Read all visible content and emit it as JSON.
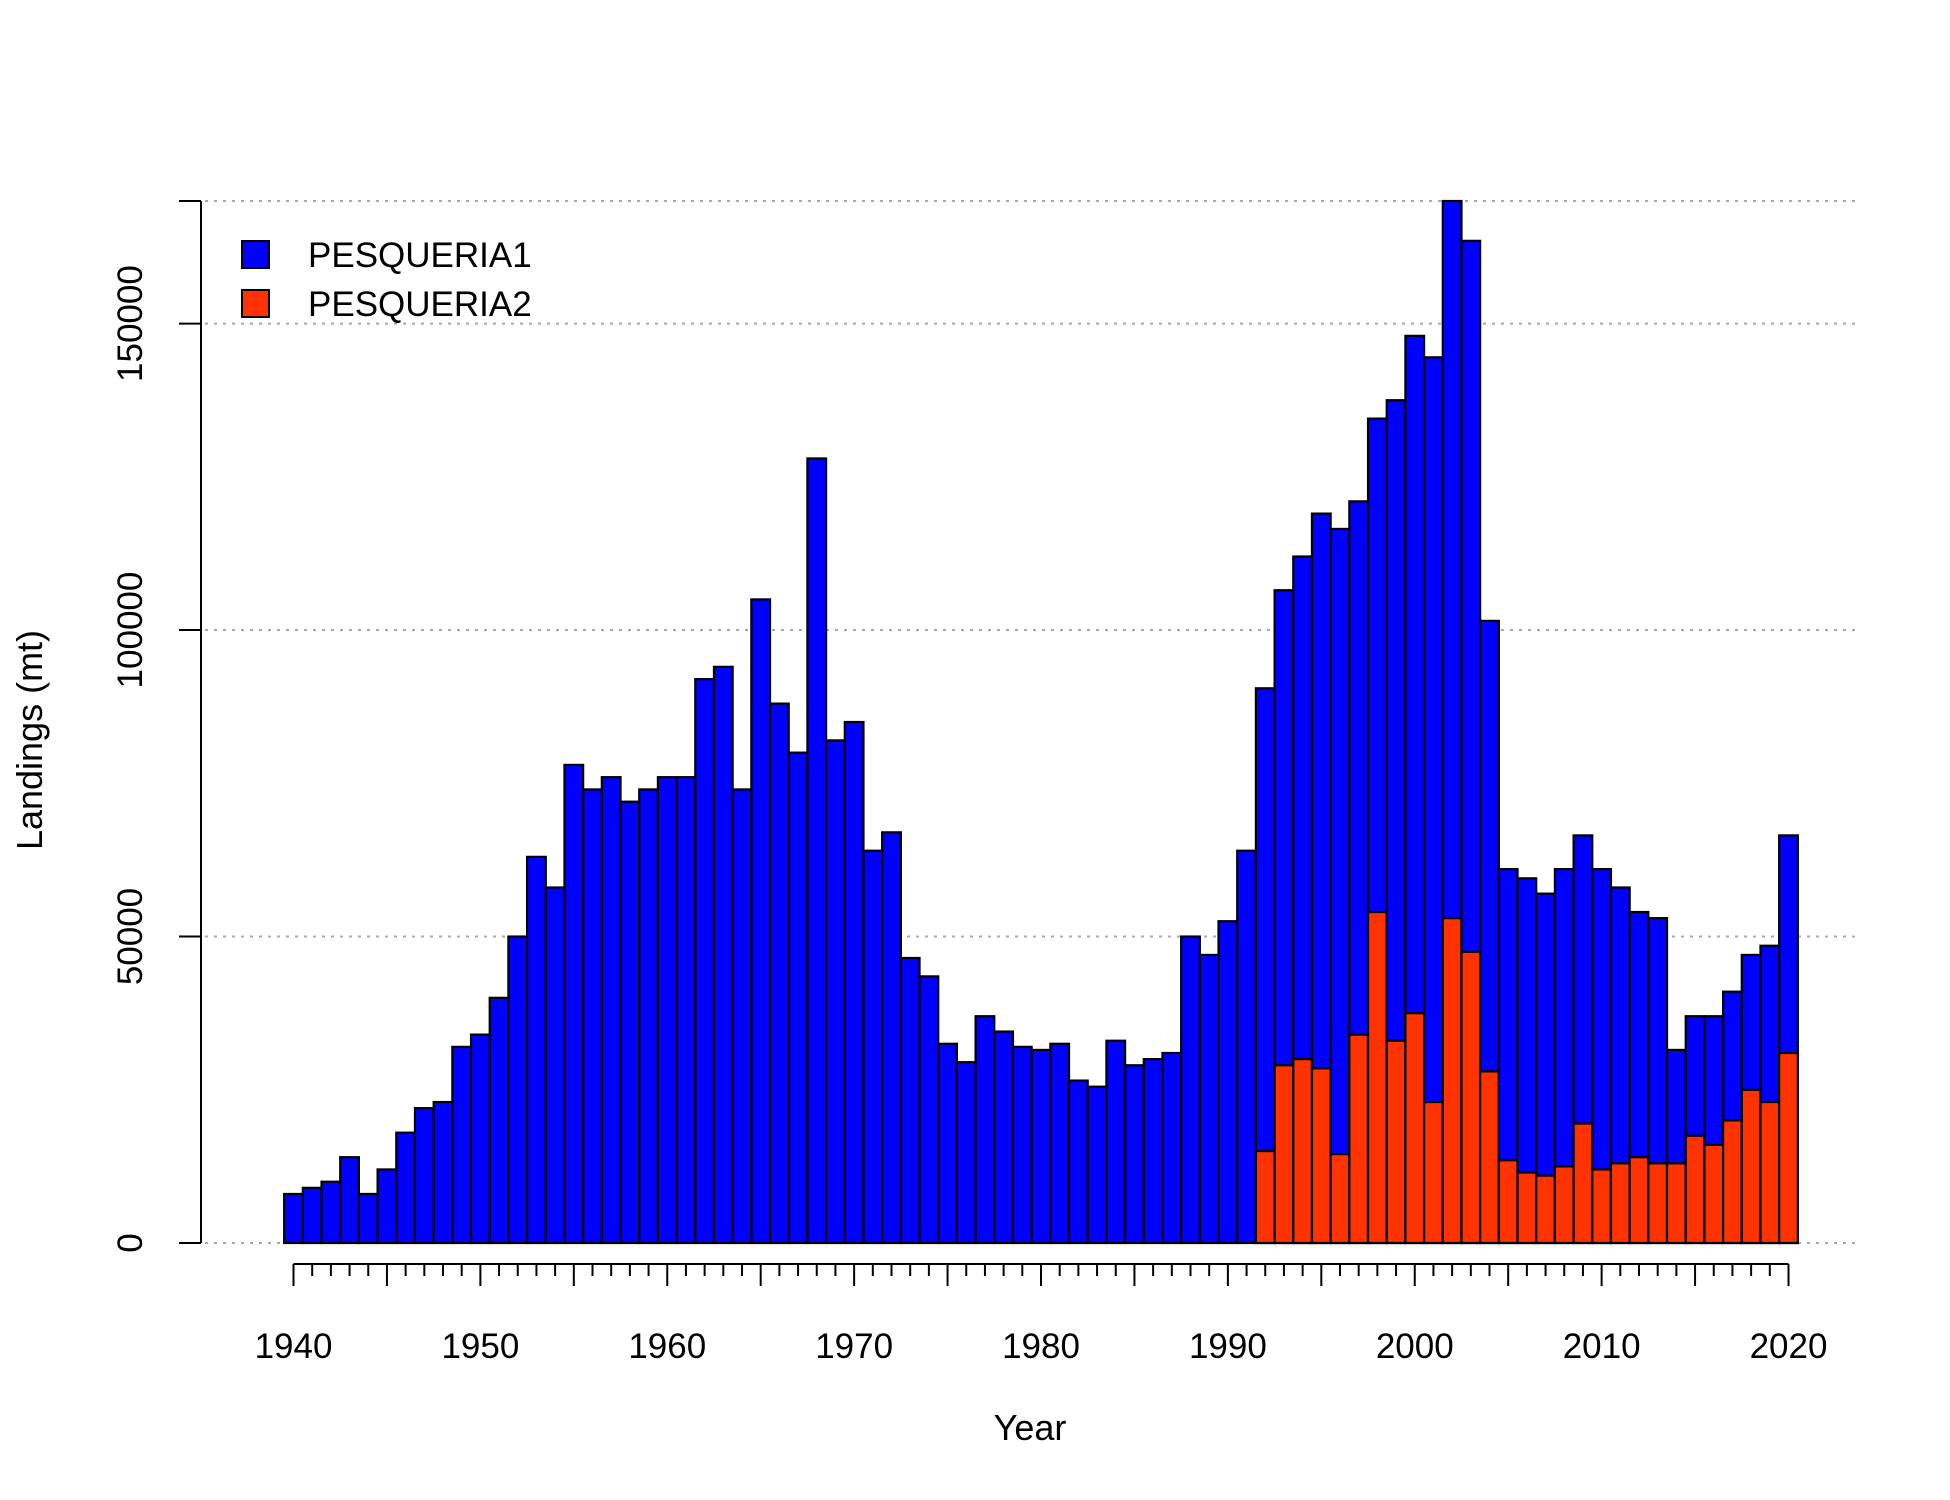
{
  "chart_data": {
    "type": "bar",
    "stacked": true,
    "title": "",
    "xlabel": "Year",
    "ylabel": "Landings (mt)",
    "xlim": [
      1940,
      2020
    ],
    "ylim": [
      0,
      170000
    ],
    "x_ticks": [
      1940,
      1950,
      1960,
      1970,
      1980,
      1990,
      2000,
      2010,
      2020
    ],
    "y_ticks": [
      0,
      50000,
      100000,
      150000
    ],
    "grid": "horizontal dotted",
    "legend_position": "top-left",
    "years": [
      1940,
      1941,
      1942,
      1943,
      1944,
      1945,
      1946,
      1947,
      1948,
      1949,
      1950,
      1951,
      1952,
      1953,
      1954,
      1955,
      1956,
      1957,
      1958,
      1959,
      1960,
      1961,
      1962,
      1963,
      1964,
      1965,
      1966,
      1967,
      1968,
      1969,
      1970,
      1971,
      1972,
      1973,
      1974,
      1975,
      1976,
      1977,
      1978,
      1979,
      1980,
      1981,
      1982,
      1983,
      1984,
      1985,
      1986,
      1987,
      1988,
      1989,
      1990,
      1991,
      1992,
      1993,
      1994,
      1995,
      1996,
      1997,
      1998,
      1999,
      2000,
      2001,
      2002,
      2003,
      2004,
      2005,
      2006,
      2007,
      2008,
      2009,
      2010,
      2011,
      2012,
      2013,
      2014,
      2015,
      2016,
      2017,
      2018,
      2019,
      2020
    ],
    "series": [
      {
        "name": "PESQUERIA1",
        "color": "#0000FF",
        "total_values": [
          8000,
          9000,
          10000,
          14000,
          8000,
          12000,
          18000,
          22000,
          23000,
          32000,
          34000,
          40000,
          50000,
          63000,
          58000,
          78000,
          74000,
          76000,
          72000,
          74000,
          76000,
          76000,
          92000,
          94000,
          74000,
          105000,
          88000,
          80000,
          128000,
          82000,
          85000,
          64000,
          67000,
          46500,
          43500,
          32500,
          29500,
          37000,
          34500,
          32000,
          31500,
          32500,
          26500,
          25500,
          33000,
          29000,
          30000,
          31000,
          50000,
          47000,
          52500,
          64000,
          90500,
          106500,
          112000,
          119000,
          116500,
          121000,
          134500,
          137500,
          148000,
          144500,
          170000,
          163500,
          101500,
          61000,
          59500,
          57000,
          61000,
          66500,
          61000,
          58000,
          54000,
          53000,
          31500,
          37000,
          37000,
          41000,
          47000,
          48500,
          66500
        ]
      },
      {
        "name": "PESQUERIA2",
        "color": "#FF3300",
        "values": [
          0,
          0,
          0,
          0,
          0,
          0,
          0,
          0,
          0,
          0,
          0,
          0,
          0,
          0,
          0,
          0,
          0,
          0,
          0,
          0,
          0,
          0,
          0,
          0,
          0,
          0,
          0,
          0,
          0,
          0,
          0,
          0,
          0,
          0,
          0,
          0,
          0,
          0,
          0,
          0,
          0,
          0,
          0,
          0,
          0,
          0,
          0,
          0,
          0,
          0,
          0,
          0,
          15000,
          29000,
          30000,
          28500,
          14500,
          34000,
          54000,
          33000,
          37500,
          23000,
          53000,
          47500,
          28000,
          13500,
          11500,
          11000,
          12500,
          19500,
          12000,
          13000,
          14000,
          13000,
          13000,
          17500,
          16000,
          20000,
          25000,
          23000,
          31000
        ]
      }
    ]
  }
}
